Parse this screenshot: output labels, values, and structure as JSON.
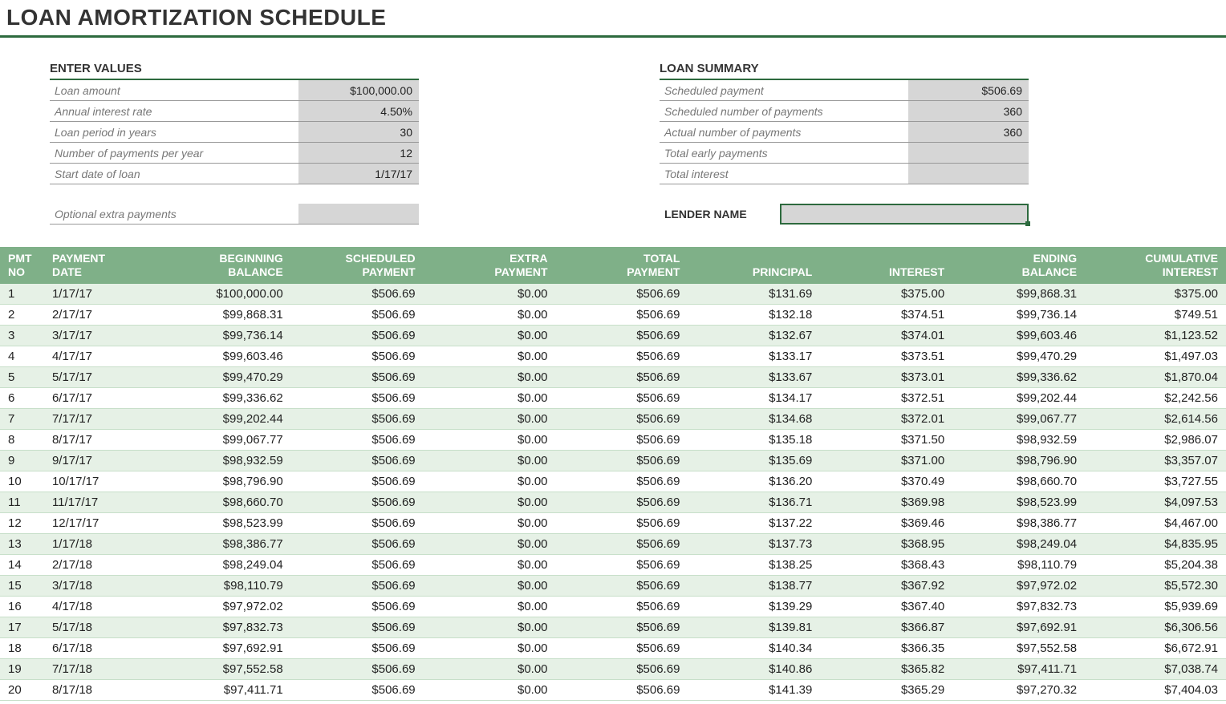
{
  "title": "LOAN AMORTIZATION SCHEDULE",
  "enterValues": {
    "heading": "ENTER VALUES",
    "rows": [
      {
        "label": "Loan amount",
        "value": "$100,000.00"
      },
      {
        "label": "Annual interest rate",
        "value": "4.50%"
      },
      {
        "label": "Loan period in years",
        "value": "30"
      },
      {
        "label": "Number of payments per year",
        "value": "12"
      },
      {
        "label": "Start date of loan",
        "value": "1/17/17"
      }
    ],
    "extraLabel": "Optional extra payments",
    "extraValue": ""
  },
  "loanSummary": {
    "heading": "LOAN SUMMARY",
    "rows": [
      {
        "label": "Scheduled payment",
        "value": "$506.69"
      },
      {
        "label": "Scheduled number of payments",
        "value": "360"
      },
      {
        "label": "Actual number of payments",
        "value": "360"
      },
      {
        "label": "Total early payments",
        "value": ""
      },
      {
        "label": "Total interest",
        "value": ""
      }
    ],
    "lenderLabel": "LENDER NAME",
    "lenderValue": ""
  },
  "schedule": {
    "headers": [
      {
        "line1": "PMT",
        "line2": "NO",
        "align": "left"
      },
      {
        "line1": "PAYMENT",
        "line2": "DATE",
        "align": "left"
      },
      {
        "line1": "BEGINNING",
        "line2": "BALANCE",
        "align": "right"
      },
      {
        "line1": "SCHEDULED",
        "line2": "PAYMENT",
        "align": "right"
      },
      {
        "line1": "EXTRA",
        "line2": "PAYMENT",
        "align": "right"
      },
      {
        "line1": "TOTAL",
        "line2": "PAYMENT",
        "align": "right"
      },
      {
        "line1": "",
        "line2": "PRINCIPAL",
        "align": "right"
      },
      {
        "line1": "",
        "line2": "INTEREST",
        "align": "right"
      },
      {
        "line1": "ENDING",
        "line2": "BALANCE",
        "align": "right"
      },
      {
        "line1": "CUMULATIVE",
        "line2": "INTEREST",
        "align": "right"
      }
    ],
    "rows": [
      [
        "1",
        "1/17/17",
        "$100,000.00",
        "$506.69",
        "$0.00",
        "$506.69",
        "$131.69",
        "$375.00",
        "$99,868.31",
        "$375.00"
      ],
      [
        "2",
        "2/17/17",
        "$99,868.31",
        "$506.69",
        "$0.00",
        "$506.69",
        "$132.18",
        "$374.51",
        "$99,736.14",
        "$749.51"
      ],
      [
        "3",
        "3/17/17",
        "$99,736.14",
        "$506.69",
        "$0.00",
        "$506.69",
        "$132.67",
        "$374.01",
        "$99,603.46",
        "$1,123.52"
      ],
      [
        "4",
        "4/17/17",
        "$99,603.46",
        "$506.69",
        "$0.00",
        "$506.69",
        "$133.17",
        "$373.51",
        "$99,470.29",
        "$1,497.03"
      ],
      [
        "5",
        "5/17/17",
        "$99,470.29",
        "$506.69",
        "$0.00",
        "$506.69",
        "$133.67",
        "$373.01",
        "$99,336.62",
        "$1,870.04"
      ],
      [
        "6",
        "6/17/17",
        "$99,336.62",
        "$506.69",
        "$0.00",
        "$506.69",
        "$134.17",
        "$372.51",
        "$99,202.44",
        "$2,242.56"
      ],
      [
        "7",
        "7/17/17",
        "$99,202.44",
        "$506.69",
        "$0.00",
        "$506.69",
        "$134.68",
        "$372.01",
        "$99,067.77",
        "$2,614.56"
      ],
      [
        "8",
        "8/17/17",
        "$99,067.77",
        "$506.69",
        "$0.00",
        "$506.69",
        "$135.18",
        "$371.50",
        "$98,932.59",
        "$2,986.07"
      ],
      [
        "9",
        "9/17/17",
        "$98,932.59",
        "$506.69",
        "$0.00",
        "$506.69",
        "$135.69",
        "$371.00",
        "$98,796.90",
        "$3,357.07"
      ],
      [
        "10",
        "10/17/17",
        "$98,796.90",
        "$506.69",
        "$0.00",
        "$506.69",
        "$136.20",
        "$370.49",
        "$98,660.70",
        "$3,727.55"
      ],
      [
        "11",
        "11/17/17",
        "$98,660.70",
        "$506.69",
        "$0.00",
        "$506.69",
        "$136.71",
        "$369.98",
        "$98,523.99",
        "$4,097.53"
      ],
      [
        "12",
        "12/17/17",
        "$98,523.99",
        "$506.69",
        "$0.00",
        "$506.69",
        "$137.22",
        "$369.46",
        "$98,386.77",
        "$4,467.00"
      ],
      [
        "13",
        "1/17/18",
        "$98,386.77",
        "$506.69",
        "$0.00",
        "$506.69",
        "$137.73",
        "$368.95",
        "$98,249.04",
        "$4,835.95"
      ],
      [
        "14",
        "2/17/18",
        "$98,249.04",
        "$506.69",
        "$0.00",
        "$506.69",
        "$138.25",
        "$368.43",
        "$98,110.79",
        "$5,204.38"
      ],
      [
        "15",
        "3/17/18",
        "$98,110.79",
        "$506.69",
        "$0.00",
        "$506.69",
        "$138.77",
        "$367.92",
        "$97,972.02",
        "$5,572.30"
      ],
      [
        "16",
        "4/17/18",
        "$97,972.02",
        "$506.69",
        "$0.00",
        "$506.69",
        "$139.29",
        "$367.40",
        "$97,832.73",
        "$5,939.69"
      ],
      [
        "17",
        "5/17/18",
        "$97,832.73",
        "$506.69",
        "$0.00",
        "$506.69",
        "$139.81",
        "$366.87",
        "$97,692.91",
        "$6,306.56"
      ],
      [
        "18",
        "6/17/18",
        "$97,692.91",
        "$506.69",
        "$0.00",
        "$506.69",
        "$140.34",
        "$366.35",
        "$97,552.58",
        "$6,672.91"
      ],
      [
        "19",
        "7/17/18",
        "$97,552.58",
        "$506.69",
        "$0.00",
        "$506.69",
        "$140.86",
        "$365.82",
        "$97,411.71",
        "$7,038.74"
      ],
      [
        "20",
        "8/17/18",
        "$97,411.71",
        "$506.69",
        "$0.00",
        "$506.69",
        "$141.39",
        "$365.29",
        "$97,270.32",
        "$7,404.03"
      ]
    ],
    "colWidths": [
      "50px",
      "130px",
      "150px",
      "150px",
      "150px",
      "150px",
      "150px",
      "150px",
      "150px",
      "160px"
    ]
  },
  "colors": {
    "accent": "#2d6a3e",
    "headerBg": "#7fb088",
    "oddRow": "#e6f1e6",
    "valueBg": "#d6d6d6"
  }
}
